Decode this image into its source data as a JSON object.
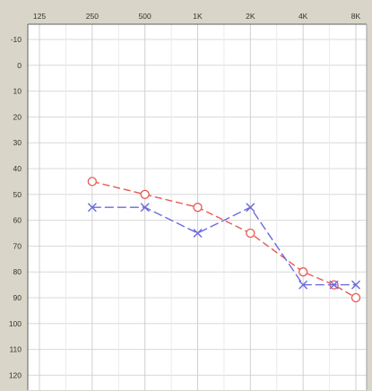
{
  "chart_data": {
    "type": "line",
    "title": "",
    "xlabel": "",
    "ylabel": "",
    "x_scale": "log",
    "y_inverted": true,
    "x_tick_labels": [
      "125",
      "250",
      "500",
      "1K",
      "2K",
      "4K",
      "8K"
    ],
    "x_ticks_hz": [
      125,
      250,
      500,
      1000,
      2000,
      4000,
      8000
    ],
    "xlim": [
      125,
      8000
    ],
    "y_tick_labels": [
      "-10",
      "0",
      "10",
      "20",
      "30",
      "40",
      "50",
      "60",
      "70",
      "80",
      "90",
      "100",
      "110",
      "120"
    ],
    "ylim": [
      -10,
      120
    ],
    "grid": true,
    "series": [
      {
        "marker": "circle",
        "color": "#e8584f",
        "dash": "8 4",
        "x": [
          250,
          500,
          1000,
          2000,
          4000,
          6000,
          8000
        ],
        "y": [
          45,
          50,
          55,
          65,
          80,
          85,
          90
        ]
      },
      {
        "marker": "x",
        "color": "#6a6ae0",
        "dash": "10 4",
        "x": [
          250,
          500,
          1000,
          2000,
          4000,
          6000,
          8000
        ],
        "y": [
          55,
          55,
          65,
          55,
          85,
          85,
          85
        ]
      }
    ]
  }
}
